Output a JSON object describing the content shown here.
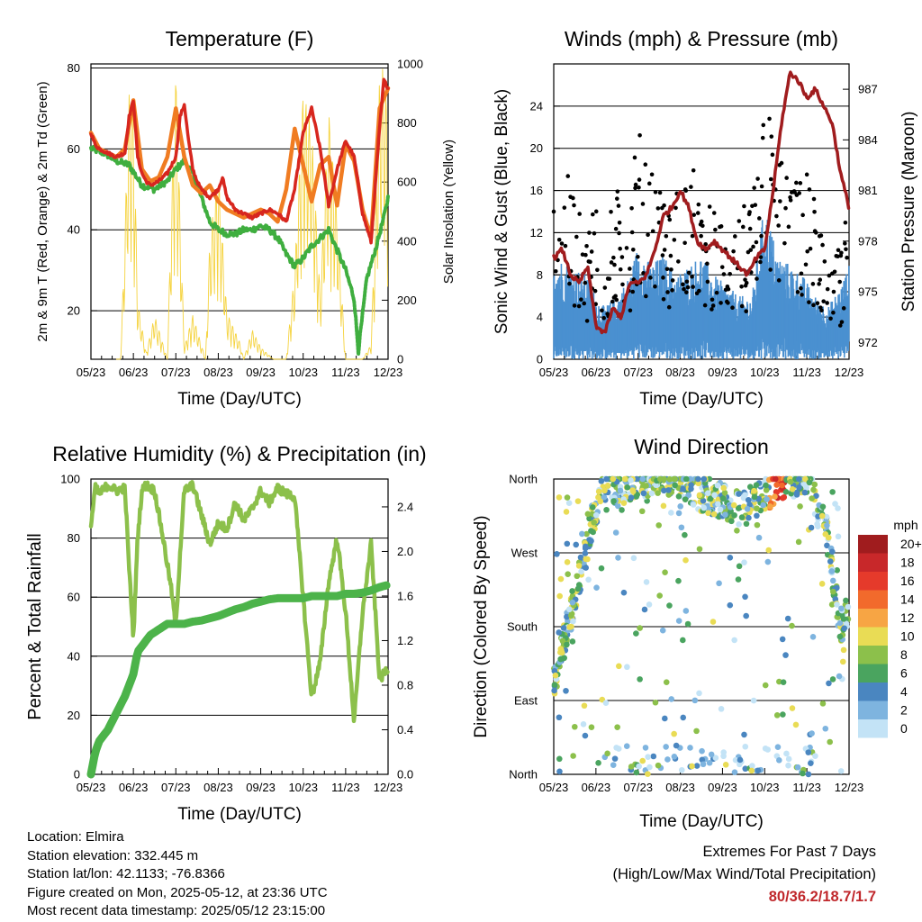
{
  "x_tick_labels": [
    "05/23",
    "06/23",
    "07/23",
    "08/23",
    "09/23",
    "10/23",
    "11/23",
    "12/23"
  ],
  "panels": {
    "temperature": {
      "title": "Temperature (F)",
      "xlabel": "Time (Day/UTC)",
      "ylabel_left": "2m & 9m T (Red, Orange) & 2m Td (Green)",
      "ylabel_right": "Solar Insolation (Yellow)",
      "left_ticks": [
        "20",
        "40",
        "60",
        "80"
      ],
      "right_ticks": [
        "0",
        "200",
        "400",
        "600",
        "800",
        "1000"
      ]
    },
    "winds": {
      "title": "Winds (mph) & Pressure (mb)",
      "xlabel": "Time (Day/UTC)",
      "ylabel_left": "Sonic Wind & Gust (Blue, Black)",
      "ylabel_right": "Station Pressure (Maroon)",
      "left_ticks": [
        "0",
        "4",
        "8",
        "12",
        "16",
        "20",
        "24"
      ],
      "right_ticks": [
        "972",
        "975",
        "978",
        "981",
        "984",
        "987"
      ]
    },
    "humidity": {
      "title": "Relative Humidity (%) & Precipitation (in)",
      "xlabel": "Time (Day/UTC)",
      "ylabel_left": "Percent & Total Rainfall",
      "left_ticks": [
        "0",
        "20",
        "40",
        "60",
        "80",
        "100"
      ],
      "right_ticks": [
        "0.0",
        "0.4",
        "0.8",
        "1.2",
        "1.6",
        "2.0",
        "2.4"
      ]
    },
    "direction": {
      "title": "Wind Direction",
      "xlabel": "Time (Day/UTC)",
      "ylabel_left": "Direction (Colored By Speed)",
      "left_ticks": [
        "North",
        "East",
        "South",
        "West",
        "North"
      ],
      "legend_title": "mph",
      "legend_labels": [
        "20+",
        "18",
        "16",
        "14",
        "12",
        "10",
        "8",
        "6",
        "4",
        "2",
        "0"
      ],
      "legend_colors": [
        "#a01c1e",
        "#c8282a",
        "#e53a2b",
        "#f26a2c",
        "#f7a544",
        "#e9dc55",
        "#8cc04b",
        "#4aa45f",
        "#4a86c0",
        "#7eb4df",
        "#c3e3f6"
      ]
    }
  },
  "chart_data": [
    {
      "type": "line",
      "title": "Temperature (F)",
      "xlabel": "Time (Day/UTC)",
      "ylabel": "2m & 9m T (Red, Orange) & 2m Td (Green)",
      "ylabel_right": "Solar Insolation (Yellow)",
      "ylim": [
        8,
        81
      ],
      "ylim_right": [
        0,
        1000
      ],
      "x": [
        "05/23",
        "06/23",
        "07/23",
        "08/23",
        "09/23",
        "10/23",
        "11/23",
        "12/23"
      ],
      "colors": {
        "t2m": "#d7261e",
        "t9m": "#f07c22",
        "td2m": "#3fae3f",
        "solar": "#f5d33f"
      },
      "series": [
        {
          "name": "2m T",
          "x": [
            0,
            0.1,
            0.2,
            0.4,
            0.6,
            0.8,
            0.9,
            1.0,
            1.1,
            1.2,
            1.3,
            1.4,
            1.6,
            1.8,
            2.0,
            2.1,
            2.2,
            2.3,
            2.4,
            2.5,
            2.6,
            2.8,
            3.0,
            3.1,
            3.2,
            3.4,
            3.6,
            3.8,
            4.0,
            4.2,
            4.4,
            4.6,
            4.8,
            5.0,
            5.2,
            5.4,
            5.6,
            5.8,
            6.0,
            6.2,
            6.4,
            6.6,
            6.8,
            6.9,
            7.0
          ],
          "values": [
            64,
            61,
            60,
            59,
            58,
            59,
            68,
            72,
            58,
            54,
            52,
            51,
            52,
            54,
            58,
            68,
            71,
            62,
            55,
            52,
            50,
            48,
            50,
            53,
            48,
            45,
            44,
            43,
            44,
            45,
            44,
            42,
            50,
            64,
            70,
            60,
            46,
            55,
            62,
            58,
            44,
            37,
            65,
            77,
            75
          ]
        },
        {
          "name": "9m T",
          "x": [
            0,
            0.2,
            0.4,
            0.6,
            0.8,
            1.0,
            1.2,
            1.4,
            1.6,
            1.8,
            2.0,
            2.2,
            2.4,
            2.6,
            2.8,
            3.0,
            3.2,
            3.4,
            3.6,
            3.8,
            4.0,
            4.2,
            4.4,
            4.6,
            4.8,
            5.0,
            5.2,
            5.4,
            5.6,
            5.8,
            6.0,
            6.2,
            6.4,
            6.6,
            6.8,
            7.0
          ],
          "values": [
            64,
            60,
            59,
            58,
            60,
            72,
            55,
            52,
            53,
            58,
            70,
            58,
            51,
            49,
            51,
            47,
            45,
            44,
            43,
            44,
            45,
            44,
            42,
            50,
            65,
            56,
            47,
            56,
            58,
            46,
            61,
            57,
            45,
            38,
            70,
            75
          ]
        },
        {
          "name": "2m Td",
          "x": [
            0,
            0.3,
            0.6,
            0.9,
            1.2,
            1.5,
            1.8,
            2.0,
            2.2,
            2.4,
            2.6,
            2.8,
            3.0,
            3.2,
            3.4,
            3.6,
            3.8,
            4.0,
            4.2,
            4.4,
            4.6,
            4.8,
            5.0,
            5.2,
            5.4,
            5.6,
            5.8,
            6.0,
            6.2,
            6.3,
            6.5,
            6.7,
            6.9,
            7.0
          ],
          "values": [
            60,
            59,
            57,
            56,
            51,
            50,
            52,
            55,
            57,
            54,
            48,
            42,
            40,
            39,
            39,
            40,
            40,
            41,
            40,
            38,
            34,
            31,
            33,
            36,
            38,
            40,
            35,
            30,
            23,
            10,
            28,
            35,
            43,
            48
          ]
        },
        {
          "name": "Solar Insolation",
          "x": [
            0.7,
            0.8,
            0.9,
            1.0,
            1.1,
            1.3,
            1.5,
            1.8,
            1.9,
            2.0,
            2.1,
            2.2,
            2.4,
            2.7,
            2.8,
            3.0,
            3.2,
            3.5,
            3.6,
            3.8,
            4.0,
            4.3,
            4.6,
            4.8,
            5.0,
            5.2,
            5.4,
            5.6,
            5.8,
            6.0,
            6.2,
            6.4,
            6.6,
            6.8,
            6.9,
            7.0
          ],
          "values": [
            0,
            450,
            900,
            880,
            200,
            20,
            150,
            0,
            550,
            980,
            500,
            40,
            150,
            0,
            400,
            650,
            160,
            60,
            0,
            100,
            40,
            0,
            0,
            300,
            920,
            780,
            220,
            850,
            500,
            0,
            0,
            0,
            50,
            950,
            1000,
            800
          ]
        }
      ]
    },
    {
      "type": "scatter",
      "title": "Winds (mph) & Pressure (mb)",
      "xlabel": "Time (Day/UTC)",
      "ylabel": "Sonic Wind & Gust (Blue, Black)",
      "ylabel_right": "Station Pressure (Maroon)",
      "ylim": [
        0,
        28
      ],
      "ylim_right": [
        971,
        988.5
      ],
      "x": [
        "05/23",
        "06/23",
        "07/23",
        "08/23",
        "09/23",
        "10/23",
        "11/23",
        "12/23"
      ],
      "colors": {
        "wind": "#4a90d0",
        "gust": "#000000",
        "pressure": "#a01c1e"
      },
      "series": [
        {
          "name": "Sonic Wind (upper envelope)",
          "x": [
            0,
            0.4,
            0.8,
            1.0,
            1.2,
            1.5,
            1.8,
            2.0,
            2.3,
            2.6,
            2.9,
            3.2,
            3.5,
            3.8,
            4.1,
            4.4,
            4.7,
            5.0,
            5.3,
            5.6,
            5.9,
            6.2,
            6.5,
            6.8,
            7.0
          ],
          "values": [
            10,
            9,
            8,
            6,
            5,
            6,
            8,
            11,
            9,
            10,
            8,
            9,
            10,
            8,
            7,
            6,
            6,
            15,
            10,
            9,
            8,
            6,
            5,
            7,
            9
          ]
        },
        {
          "name": "Gust (upper envelope)",
          "x": [
            0,
            0.3,
            0.6,
            0.8,
            1.0,
            1.2,
            1.5,
            1.8,
            2.0,
            2.3,
            2.6,
            2.9,
            3.2,
            3.5,
            3.8,
            4.1,
            4.4,
            4.7,
            5.0,
            5.2,
            5.5,
            5.8,
            6.0,
            6.3,
            6.6,
            6.8,
            7.0
          ],
          "values": [
            16,
            18,
            14,
            12,
            17,
            10,
            18,
            15,
            22,
            18,
            15,
            17,
            20,
            16,
            14,
            12,
            14,
            16,
            26,
            22,
            19,
            17,
            18,
            14,
            12,
            10,
            16
          ]
        },
        {
          "name": "Station Pressure",
          "x": [
            0,
            0.2,
            0.4,
            0.6,
            0.8,
            1.0,
            1.2,
            1.4,
            1.6,
            1.8,
            2.0,
            2.2,
            2.4,
            2.6,
            2.8,
            3.0,
            3.2,
            3.4,
            3.6,
            3.8,
            4.0,
            4.2,
            4.4,
            4.6,
            4.8,
            5.0,
            5.2,
            5.4,
            5.6,
            5.8,
            6.0,
            6.2,
            6.4,
            6.6,
            6.8,
            7.0
          ],
          "values": [
            977,
            977.5,
            976,
            975.5,
            976.5,
            973,
            972.5,
            974,
            973.5,
            975.5,
            975.5,
            976,
            977.5,
            979.5,
            980,
            981,
            980,
            978,
            977.5,
            978,
            977.5,
            977,
            976.5,
            976,
            977,
            977.5,
            981,
            985,
            988,
            987.5,
            986.5,
            987,
            986,
            985,
            982,
            980
          ]
        }
      ]
    },
    {
      "type": "line",
      "title": "Relative Humidity (%) & Precipitation (in)",
      "xlabel": "Time (Day/UTC)",
      "ylabel": "Percent & Total Rainfall",
      "ylim": [
        0,
        100
      ],
      "ylim_right": [
        0,
        2.65
      ],
      "x": [
        "05/23",
        "06/23",
        "07/23",
        "08/23",
        "09/23",
        "10/23",
        "11/23",
        "12/23"
      ],
      "colors": {
        "rh": "#8cc04b",
        "rain": "#4cb34a"
      },
      "series": [
        {
          "name": "Relative Humidity",
          "x": [
            0,
            0.1,
            0.2,
            0.4,
            0.6,
            0.8,
            0.9,
            1.0,
            1.1,
            1.2,
            1.3,
            1.5,
            1.7,
            1.9,
            2.0,
            2.1,
            2.2,
            2.4,
            2.6,
            2.8,
            3.0,
            3.2,
            3.4,
            3.6,
            3.8,
            4.0,
            4.2,
            4.4,
            4.6,
            4.8,
            5.0,
            5.2,
            5.4,
            5.6,
            5.8,
            6.0,
            6.2,
            6.4,
            6.6,
            6.8,
            7.0
          ],
          "values": [
            84,
            97,
            95,
            98,
            96,
            97,
            70,
            46,
            80,
            96,
            98,
            96,
            80,
            62,
            50,
            75,
            96,
            98,
            88,
            78,
            85,
            83,
            92,
            86,
            90,
            96,
            92,
            97,
            95,
            94,
            60,
            26,
            38,
            65,
            80,
            55,
            18,
            55,
            78,
            32,
            36
          ]
        },
        {
          "name": "Total Precipitation",
          "x": [
            0,
            0.1,
            0.2,
            0.4,
            0.6,
            0.8,
            1.0,
            1.1,
            1.2,
            1.4,
            1.6,
            1.8,
            2.0,
            2.2,
            2.4,
            2.6,
            2.8,
            3.0,
            3.2,
            3.4,
            3.6,
            3.8,
            4.0,
            4.2,
            4.4,
            4.6,
            4.8,
            5.0,
            5.2,
            5.4,
            5.6,
            5.8,
            6.0,
            6.2,
            6.4,
            6.6,
            6.8,
            7.0
          ],
          "values": [
            0,
            0.2,
            0.3,
            0.4,
            0.55,
            0.7,
            0.9,
            1.1,
            1.15,
            1.25,
            1.3,
            1.35,
            1.35,
            1.35,
            1.37,
            1.38,
            1.4,
            1.42,
            1.45,
            1.48,
            1.5,
            1.53,
            1.55,
            1.57,
            1.58,
            1.58,
            1.58,
            1.58,
            1.6,
            1.6,
            1.6,
            1.6,
            1.62,
            1.62,
            1.63,
            1.65,
            1.68,
            1.7
          ]
        }
      ]
    },
    {
      "type": "scatter",
      "title": "Wind Direction",
      "xlabel": "Time (Day/UTC)",
      "ylabel": "Direction (Colored By Speed)",
      "ylim": [
        "North",
        "East",
        "South",
        "West",
        "North"
      ],
      "x": [
        "05/23",
        "06/23",
        "07/23",
        "08/23",
        "09/23",
        "10/23",
        "11/23",
        "12/23"
      ],
      "legend": {
        "title": "mph",
        "placement": "right"
      },
      "notes": "points colored by wind speed (0 to 20+ mph)"
    }
  ],
  "footer": {
    "location": "Location: Elmira",
    "elevation": "Station elevation: 332.445 m",
    "latlon": "Station lat/lon: 42.1133; -76.8366",
    "created": "Figure created on Mon, 2025-05-12, at 23:36 UTC",
    "recent": "Most recent data timestamp: 2025/05/12 23:15:00",
    "extremes_title": "Extremes For Past 7 Days",
    "extremes_sub": "(High/Low/Max Wind/Total Precipitation)",
    "extremes_values": "80/36.2/18.7/1.7"
  }
}
